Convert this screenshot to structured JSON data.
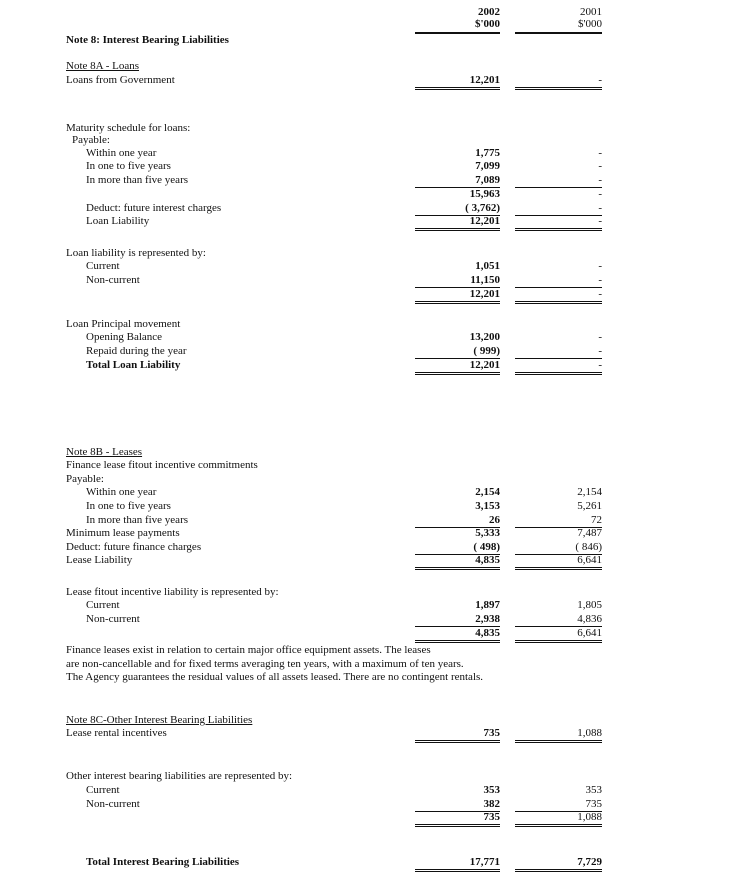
{
  "header": {
    "year_current": "2002",
    "year_prior": "2001",
    "unit_current": "$'000",
    "unit_prior": "$'000"
  },
  "rows": [
    {
      "label": "Note 8: Interest Bearing Liabilities"
    },
    {
      "label": "Note 8A - Loans"
    },
    {
      "label": "Loans from Government",
      "v2002": "12,201",
      "v2001": "-"
    },
    {
      "label": "Maturity schedule for loans:"
    },
    {
      "label": "Payable:"
    },
    {
      "label": "Within one year",
      "v2002": "1,775",
      "v2001": "-"
    },
    {
      "label": "In one to five years",
      "v2002": "7,099",
      "v2001": "-"
    },
    {
      "label": "In more than five years",
      "v2002": "7,089",
      "v2001": "-"
    },
    {
      "label": "",
      "v2002": "15,963",
      "v2001": "-"
    },
    {
      "label": "Deduct: future interest charges",
      "v2002": "( 3,762)",
      "v2001": "-"
    },
    {
      "label": "Loan Liability",
      "v2002": "12,201",
      "v2001": "-"
    },
    {
      "label": "Loan liability is represented by:"
    },
    {
      "label": "Current",
      "v2002": "1,051",
      "v2001": "-"
    },
    {
      "label": "Non-current",
      "v2002": "11,150",
      "v2001": "-"
    },
    {
      "label": "",
      "v2002": "12,201",
      "v2001": "-"
    },
    {
      "label": "Loan Principal movement"
    },
    {
      "label": "Opening Balance",
      "v2002": "13,200",
      "v2001": "-"
    },
    {
      "label": "Repaid during the year",
      "v2002": "( 999)",
      "v2001": "-"
    },
    {
      "label": "Total Loan Liability",
      "v2002": "12,201",
      "v2001": "-"
    },
    {
      "label": "Note 8B - Leases"
    },
    {
      "label": "Finance lease fitout incentive commitments"
    },
    {
      "label": "Payable:"
    },
    {
      "label": "Within one year",
      "v2002": "2,154",
      "v2001": "2,154"
    },
    {
      "label": "In one to five years",
      "v2002": "3,153",
      "v2001": "5,261"
    },
    {
      "label": "In more than five years",
      "v2002": "26",
      "v2001": "72"
    },
    {
      "label": "Minimum lease payments",
      "v2002": "5,333",
      "v2001": "7,487"
    },
    {
      "label": "Deduct: future finance charges",
      "v2002": "( 498)",
      "v2001": "( 846)"
    },
    {
      "label": "Lease Liability",
      "v2002": "4,835",
      "v2001": "6,641"
    },
    {
      "label": "Lease fitout incentive liability is represented by:"
    },
    {
      "label": "Current",
      "v2002": "1,897",
      "v2001": "1,805"
    },
    {
      "label": "Non-current",
      "v2002": "2,938",
      "v2001": "4,836"
    },
    {
      "label": "",
      "v2002": "4,835",
      "v2001": "6,641"
    },
    {
      "label": "Note 8C-Other Interest Bearing Liabilities"
    },
    {
      "label": "Lease rental incentives",
      "v2002": "735",
      "v2001": "1,088"
    },
    {
      "label": "Other interest bearing liabilities are represented by:"
    },
    {
      "label": "Current",
      "v2002": "353",
      "v2001": "353"
    },
    {
      "label": "Non-current",
      "v2002": "382",
      "v2001": "735"
    },
    {
      "label": "",
      "v2002": "735",
      "v2001": "1,088"
    },
    {
      "label": "Total Interest Bearing Liabilities",
      "v2002": "17,771",
      "v2001": "7,729"
    }
  ],
  "paragraph": [
    "Finance leases exist in relation to certain major office equipment assets.  The leases",
    "are non-cancellable and for fixed terms averaging ten years, with a maximum of ten years.",
    "The Agency guarantees the residual values of all assets leased.  There are no contingent rentals."
  ]
}
